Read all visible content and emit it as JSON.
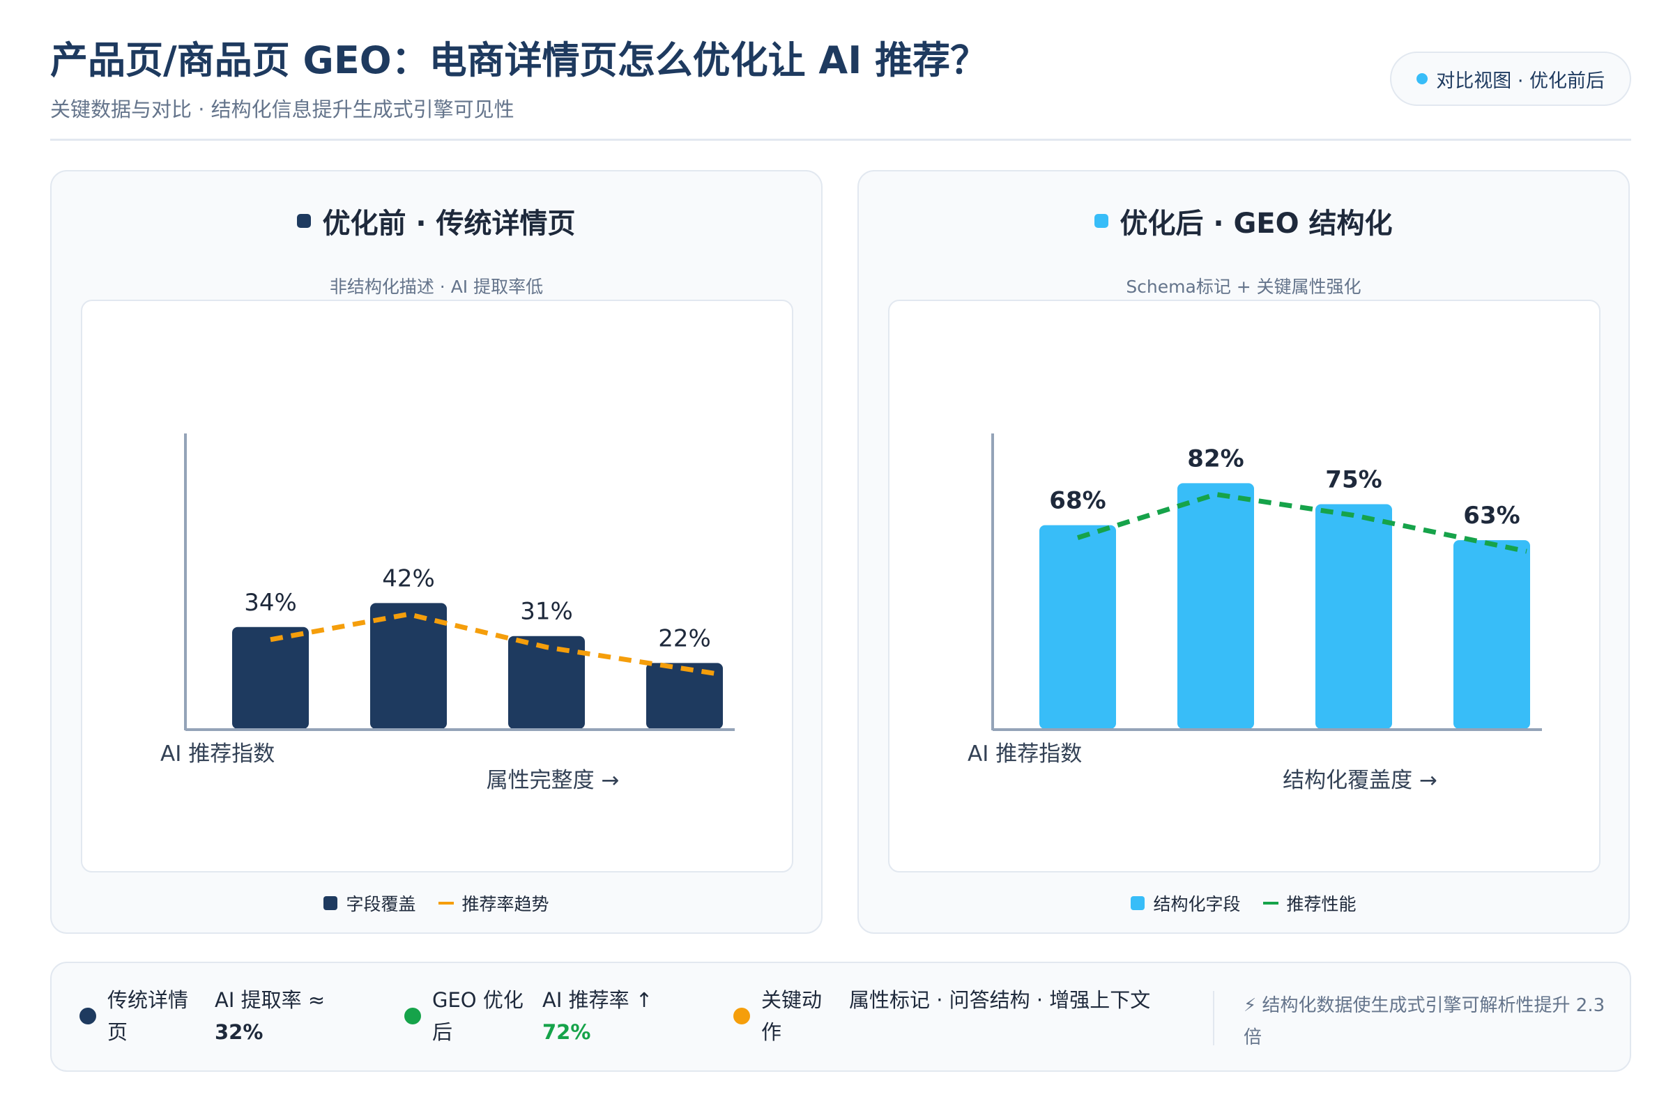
{
  "header": {
    "title": "产品页/商品页 GEO：电商详情页怎么优化让 AI 推荐？",
    "subtitle": "关键数据与对比 · 结构化信息提升生成式引擎可见性",
    "tag": "对比视图 · 优化前后"
  },
  "panels": {
    "before": {
      "title": "优化前 · 传统详情页",
      "subtitle": "非结构化描述 · AI 提取率低",
      "legend_bar": "字段覆盖",
      "legend_line": "推荐率趋势"
    },
    "after": {
      "title": "优化后 · GEO 结构化",
      "subtitle": "Schema标记 + 关键属性强化",
      "legend_bar": "结构化字段",
      "legend_line": "推荐性能"
    }
  },
  "chart_data": [
    {
      "type": "bar",
      "values": [
        34,
        42,
        31,
        22
      ],
      "value_labels": [
        "34%",
        "42%",
        "31%",
        "22%"
      ],
      "line_values": [
        34,
        42,
        31,
        22
      ],
      "ylabel": "AI 推荐指数",
      "xlabel": "属性完整度 →",
      "ylim": [
        0,
        55
      ],
      "grid": false,
      "colors": {
        "bar": "#1e3a5f",
        "line": "#f59e0b"
      },
      "line_style": "dashed",
      "label_weight": "normal"
    },
    {
      "type": "bar",
      "values": [
        68,
        82,
        75,
        63
      ],
      "value_labels": [
        "68%",
        "82%",
        "75%",
        "63%"
      ],
      "line_values": [
        68,
        82,
        75,
        63
      ],
      "ylabel": "AI 推荐指数",
      "xlabel": "结构化覆盖度 →",
      "ylim": [
        0,
        55
      ],
      "grid": false,
      "colors": {
        "bar": "#38bdf8",
        "line": "#16a34a"
      },
      "line_style": "dashed",
      "label_weight": "bold"
    }
  ],
  "summary": {
    "items": [
      {
        "label": "传统详情页",
        "metric_prefix": "AI 提取率 ≈",
        "metric_value": "32%",
        "color": "#1e3a5f",
        "value_color": "#1e293b"
      },
      {
        "label": "GEO 优化后",
        "metric_prefix": "AI 推荐率 ↑",
        "metric_value": "72%",
        "color": "#16a34a",
        "value_color": "#16a34a"
      },
      {
        "label": "关键动作",
        "metric_prefix": "属性标记 · 问答结构 · 增强上下文",
        "metric_value": "",
        "color": "#f59e0b",
        "value_color": "#1e293b"
      }
    ],
    "note": "⚡ 结构化数据使生成式引擎可解析性提升 2.3 倍"
  },
  "colors": {
    "primary": "#1e3a5f",
    "accent": "#38bdf8",
    "trend": "#f59e0b",
    "positive": "#16a34a"
  }
}
